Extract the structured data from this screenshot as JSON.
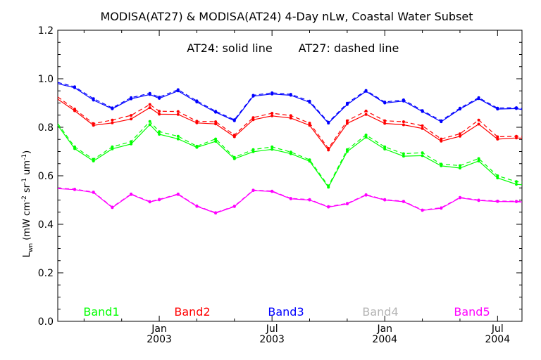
{
  "chart_data": {
    "type": "line",
    "title": "MODISA(AT27) & MODISA(AT24) 4-Day nLw, Coastal Water Subset",
    "annotation": {
      "solid": "AT24: solid line",
      "dashed": "AT27: dashed line"
    },
    "ylabel": "L_wn (mW cm^-2 sr^-1 um^-1)",
    "ylabel_parts": {
      "main": "L",
      "sub": "wn",
      "units_open": " (mW cm",
      "units_exp1": "-2",
      "units_mid": " sr",
      "units_exp2": "-1",
      "units_mid2": " um",
      "units_exp3": "-1",
      "units_close": ")"
    },
    "ylim": [
      0.0,
      1.2
    ],
    "yticks": [
      "0.0",
      "0.2",
      "0.4",
      "0.6",
      "0.8",
      "1.0",
      "1.2"
    ],
    "xticks": [
      {
        "month": "Jan",
        "year": "2003",
        "t": 0.0
      },
      {
        "month": "Jul",
        "year": "2003",
        "t": 6.0
      },
      {
        "month": "Jan",
        "year": "2004",
        "t": 12.0
      },
      {
        "month": "Jul",
        "year": "2004",
        "t": 18.0
      }
    ],
    "xlim": [
      -5.4,
      19.3
    ],
    "minor_ticks": [
      -4.0,
      -2.0,
      2.0,
      4.0,
      8.0,
      10.0,
      14.0,
      16.0
    ],
    "grid": false,
    "legend_position": "bottom",
    "t": [
      -5.4,
      -4.5,
      -3.5,
      -2.5,
      -1.5,
      -0.5,
      0.0,
      1.0,
      2.0,
      3.0,
      4.0,
      5.0,
      6.0,
      7.0,
      8.0,
      9.0,
      10.0,
      11.0,
      12.0,
      13.0,
      14.0,
      15.0,
      16.0,
      17.0,
      18.0,
      19.0,
      19.3
    ],
    "series": [
      {
        "name": "Band1",
        "color": "#00ff00",
        "solid": [
          0.808,
          0.712,
          0.661,
          0.711,
          0.731,
          0.811,
          0.771,
          0.752,
          0.717,
          0.742,
          0.67,
          0.699,
          0.709,
          0.691,
          0.66,
          0.553,
          0.7,
          0.759,
          0.71,
          0.681,
          0.683,
          0.641,
          0.632,
          0.661,
          0.591,
          0.565,
          0.563
        ],
        "dashed": [
          0.815,
          0.719,
          0.668,
          0.719,
          0.741,
          0.824,
          0.782,
          0.763,
          0.722,
          0.752,
          0.676,
          0.708,
          0.719,
          0.698,
          0.666,
          0.558,
          0.708,
          0.768,
          0.719,
          0.691,
          0.695,
          0.648,
          0.642,
          0.671,
          0.6,
          0.576,
          0.574
        ]
      },
      {
        "name": "Band2",
        "color": "#ff0000",
        "solid": [
          0.916,
          0.868,
          0.808,
          0.818,
          0.834,
          0.881,
          0.854,
          0.853,
          0.818,
          0.814,
          0.761,
          0.831,
          0.847,
          0.838,
          0.808,
          0.706,
          0.816,
          0.853,
          0.816,
          0.81,
          0.795,
          0.743,
          0.763,
          0.813,
          0.751,
          0.756,
          0.755
        ],
        "dashed": [
          0.925,
          0.875,
          0.815,
          0.83,
          0.849,
          0.894,
          0.866,
          0.865,
          0.825,
          0.823,
          0.768,
          0.84,
          0.858,
          0.848,
          0.817,
          0.713,
          0.827,
          0.867,
          0.827,
          0.823,
          0.806,
          0.752,
          0.773,
          0.83,
          0.761,
          0.763,
          0.762
        ]
      },
      {
        "name": "Band3",
        "color": "#0000ff",
        "solid": [
          0.98,
          0.963,
          0.912,
          0.876,
          0.917,
          0.935,
          0.919,
          0.95,
          0.904,
          0.862,
          0.827,
          0.928,
          0.937,
          0.932,
          0.903,
          0.817,
          0.894,
          0.948,
          0.9,
          0.908,
          0.865,
          0.823,
          0.875,
          0.918,
          0.875,
          0.877,
          0.873
        ],
        "dashed": [
          0.985,
          0.967,
          0.918,
          0.88,
          0.922,
          0.94,
          0.924,
          0.955,
          0.909,
          0.866,
          0.831,
          0.932,
          0.942,
          0.936,
          0.908,
          0.821,
          0.899,
          0.952,
          0.904,
          0.913,
          0.869,
          0.827,
          0.879,
          0.922,
          0.879,
          0.881,
          0.877
        ]
      },
      {
        "name": "Band4",
        "color": "#b4b4b4",
        "solid": [],
        "dashed": []
      },
      {
        "name": "Band5",
        "color": "#ff00ff",
        "solid": [
          0.547,
          0.543,
          0.531,
          0.469,
          0.523,
          0.492,
          0.501,
          0.523,
          0.474,
          0.446,
          0.473,
          0.539,
          0.535,
          0.505,
          0.5,
          0.471,
          0.484,
          0.52,
          0.5,
          0.493,
          0.457,
          0.466,
          0.509,
          0.498,
          0.494,
          0.493,
          0.492
        ],
        "dashed": [
          0.549,
          0.545,
          0.533,
          0.471,
          0.525,
          0.494,
          0.503,
          0.525,
          0.476,
          0.448,
          0.475,
          0.541,
          0.537,
          0.507,
          0.502,
          0.473,
          0.486,
          0.522,
          0.502,
          0.495,
          0.459,
          0.468,
          0.511,
          0.5,
          0.496,
          0.495,
          0.494
        ]
      }
    ]
  }
}
